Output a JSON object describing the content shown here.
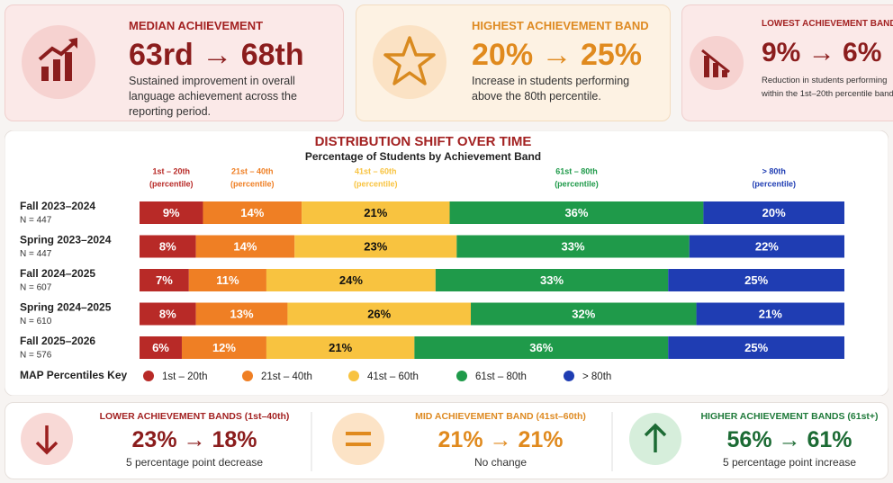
{
  "cards": [
    {
      "title": "MEDIAN ACHIEVEMENT",
      "value": "63rd → 68th",
      "description": "Sustained improvement in overall language achievement across the reporting period."
    },
    {
      "title": "HIGHEST ACHIEVEMENT BAND",
      "value": "20% → 25%",
      "description": "Increase in students performing above the 80th percentile."
    },
    {
      "title": "LOWEST ACHIEVEMENT BAND",
      "value": "9% → 6%",
      "description": "Reduction in students performing within the 1st–20th percentile band."
    }
  ],
  "summary": [
    {
      "title": "LOWER ACHIEVEMENT BANDS (1st–40th)",
      "value": "23% → 18%",
      "note": "5 percentage point decrease"
    },
    {
      "title": "MID ACHIEVEMENT BAND (41st–60th)",
      "value": "21% → 21%",
      "note": "No change"
    },
    {
      "title": "HIGHER ACHIEVEMENT BANDS (61st+)",
      "value": "56% → 61%",
      "note": "5 percentage point increase"
    }
  ],
  "chart_data": {
    "type": "stacked_bar",
    "orientation": "horizontal",
    "title": "DISTRIBUTION SHIFT OVER TIME",
    "subtitle": "Percentage of Students by Achievement Band",
    "series_note": "(percentile)",
    "legend_title": "MAP Percentiles Key",
    "categories": [
      "Fall 2023–2024",
      "Spring 2023–2024",
      "Fall 2024–2025",
      "Spring 2024–2025",
      "Fall 2025–2026"
    ],
    "category_notes": [
      "N = 447",
      "N = 447",
      "N = 607",
      "N = 610",
      "N = 576"
    ],
    "series": [
      {
        "name": "1st – 20th",
        "color": "#b82a27",
        "values": [
          9,
          8,
          7,
          8,
          6
        ],
        "value_labels": [
          "9%",
          "8%",
          "7%",
          "8%",
          "6%"
        ]
      },
      {
        "name": "21st – 40th",
        "color": "#ef7f24",
        "values": [
          14,
          14,
          11,
          13,
          12
        ],
        "value_labels": [
          "14%",
          "14%",
          "11%",
          "13%",
          "12%"
        ]
      },
      {
        "name": "41st – 60th",
        "color": "#f8c340",
        "values": [
          21,
          23,
          24,
          26,
          21
        ],
        "value_labels": [
          "21%",
          "23%",
          "24%",
          "26%",
          "21%"
        ]
      },
      {
        "name": "61st – 80th",
        "color": "#1f9a4a",
        "values": [
          36,
          33,
          33,
          32,
          36
        ],
        "value_labels": [
          "36%",
          "33%",
          "33%",
          "32%",
          "36%"
        ]
      },
      {
        "name": "> 80th",
        "color": "#1f3db3",
        "values": [
          20,
          22,
          25,
          21,
          25
        ],
        "value_labels": [
          "20%",
          "22%",
          "25%",
          "21%",
          "25%"
        ]
      }
    ]
  }
}
